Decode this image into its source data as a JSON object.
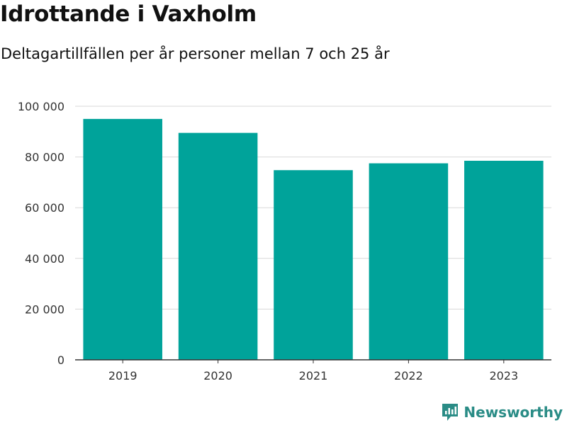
{
  "header": {
    "title": "Idrottande i Vaxholm",
    "subtitle": "Deltagartillfällen per år personer mellan 7 och 25 år"
  },
  "brand": {
    "name": "Newsworthy",
    "icon": "newsworthy-logo-icon",
    "color": "#2a8c86"
  },
  "colors": {
    "bar": "#00a39a",
    "grid": "#d9d9d9",
    "axis": "#333333"
  },
  "chart_data": {
    "type": "bar",
    "title": "Idrottande i Vaxholm",
    "subtitle": "Deltagartillfällen per år personer mellan 7 och 25 år",
    "categories": [
      "2019",
      "2020",
      "2021",
      "2022",
      "2023"
    ],
    "values": [
      95000,
      89500,
      74800,
      77500,
      78500
    ],
    "ylim": [
      0,
      100000
    ],
    "yticks": [
      0,
      20000,
      40000,
      60000,
      80000,
      100000
    ],
    "ytick_labels": [
      "0",
      "20 000",
      "40 000",
      "60 000",
      "80 000",
      "100 000"
    ],
    "grid": true,
    "legend": "none"
  }
}
